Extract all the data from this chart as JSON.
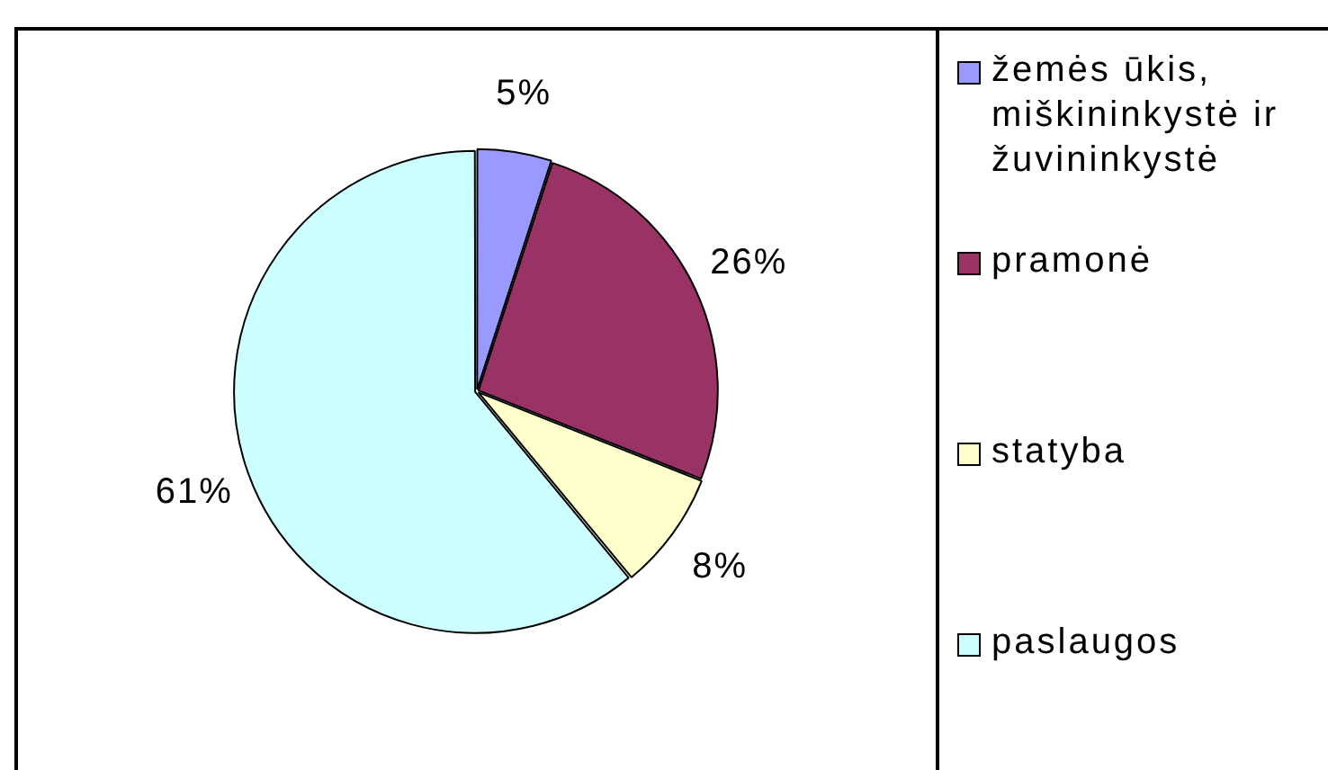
{
  "chart_data": {
    "type": "pie",
    "categories": [
      "žemės ūkis, miškininkystė ir žuvininkystė",
      "pramonė",
      "statyba",
      "paslaugos"
    ],
    "values": [
      5,
      26,
      8,
      61
    ],
    "colors": [
      "#9999ff",
      "#993366",
      "#ffffcc",
      "#ccffff"
    ],
    "value_labels": [
      "5%",
      "26%",
      "8%",
      "61%"
    ],
    "legend": "right"
  }
}
